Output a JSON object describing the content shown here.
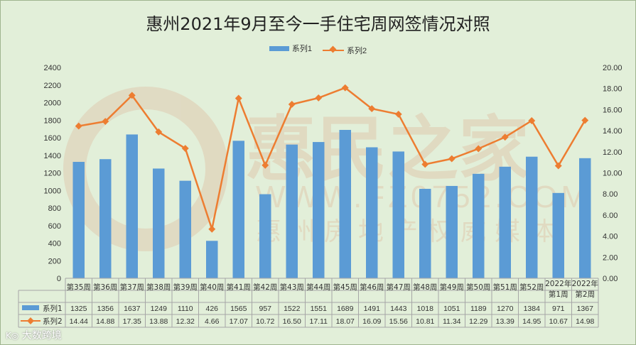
{
  "title": "惠州2021年9月至今一手住宅周网签情况对照",
  "watermark": {
    "brand": "惠民之家",
    "url": "WWW.FZ0752.COM",
    "slogan": "惠州房地产权威媒体"
  },
  "footer_logo": "大数跨境",
  "colors": {
    "bar": "#5b9bd5",
    "line": "#ed7d31",
    "background": "#e2efd9"
  },
  "chart_data": {
    "type": "bar+line",
    "title": "惠州2021年9月至今一手住宅周网签情况对照",
    "categories": [
      "第35周",
      "第36周",
      "第37周",
      "第38周",
      "第39周",
      "第40周",
      "第41周",
      "第42周",
      "第43周",
      "第44周",
      "第45周",
      "第46周",
      "第47周",
      "第48周",
      "第49周",
      "第50周",
      "第51周",
      "第52周",
      "2022年第1周",
      "2022年第2周"
    ],
    "series": [
      {
        "name": "系列1",
        "type": "bar",
        "axis": "left",
        "values": [
          1325,
          1356,
          1637,
          1249,
          1110,
          426,
          1565,
          957,
          1522,
          1551,
          1689,
          1491,
          1443,
          1018,
          1051,
          1189,
          1270,
          1384,
          971,
          1367
        ],
        "labels": [
          "1325",
          "1356",
          "1637",
          "1249",
          "1110",
          "426",
          "1565",
          "957",
          "1522",
          "1551",
          "1689",
          "1491",
          "1443",
          "1018",
          "1051",
          "1189",
          "1270",
          "1384",
          "971",
          "1367"
        ]
      },
      {
        "name": "系列2",
        "type": "line",
        "axis": "right",
        "values": [
          14.44,
          14.88,
          17.35,
          13.88,
          12.32,
          4.66,
          17.07,
          10.72,
          16.5,
          17.11,
          18.07,
          16.09,
          15.56,
          10.81,
          11.34,
          12.29,
          13.39,
          14.95,
          10.67,
          14.98
        ],
        "labels": [
          "14.44",
          "14.88",
          "17.35",
          "13.88",
          "12.32",
          "4.66",
          "17.07",
          "10.72",
          "16.50",
          "17.11",
          "18.07",
          "16.09",
          "15.56",
          "10.81",
          "11.34",
          "12.29",
          "13.39",
          "14.95",
          "10.67",
          "14.98"
        ]
      }
    ],
    "y_left": {
      "min": 0,
      "max": 2400,
      "step": 200
    },
    "y_right": {
      "min": 0,
      "max": 20,
      "step": 2,
      "decimals": 2
    },
    "legend_position": "top",
    "grid": false,
    "data_table": true
  }
}
